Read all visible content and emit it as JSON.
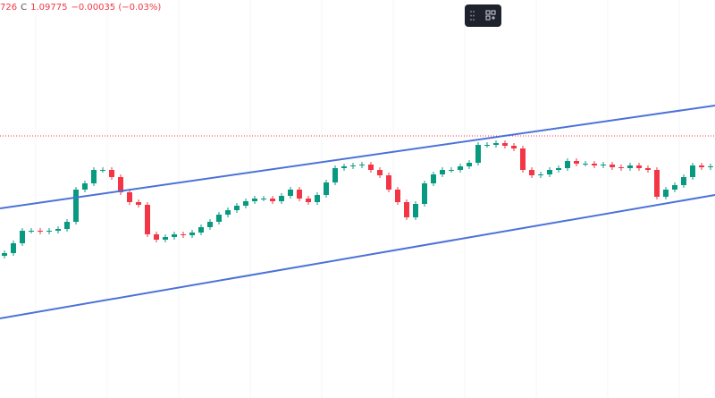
{
  "legend": {
    "prefix": "726",
    "close_label": "C",
    "close": "1.09775",
    "change": "−0.00035 (−0.03%)"
  },
  "chart_data": {
    "type": "candlestick",
    "ylim": [
      1.09516,
      1.09961
    ],
    "up_color": "#089981",
    "down_color": "#f23645",
    "line_color": "#4a72d9",
    "price_line": 1.09809,
    "open": [
      1.09675,
      1.09678,
      1.09689,
      1.09703,
      1.09703,
      1.09702,
      1.09703,
      1.09705,
      1.09713,
      1.09749,
      1.09756,
      1.09771,
      1.09771,
      1.09763,
      1.09746,
      1.09735,
      1.09732,
      1.09699,
      1.09693,
      1.09696,
      1.09699,
      1.09698,
      1.09701,
      1.09707,
      1.09713,
      1.09721,
      1.09726,
      1.09731,
      1.09736,
      1.09739,
      1.09739,
      1.09736,
      1.09742,
      1.09749,
      1.09739,
      1.09735,
      1.09743,
      1.09757,
      1.09773,
      1.09775,
      1.09776,
      1.09777,
      1.09771,
      1.09765,
      1.09749,
      1.09735,
      1.09718,
      1.09733,
      1.09756,
      1.09766,
      1.09771,
      1.09771,
      1.09775,
      1.09779,
      1.09799,
      1.09799,
      1.09801,
      1.09798,
      1.09795,
      1.09771,
      1.09765,
      1.09766,
      1.09771,
      1.09773,
      1.09781,
      1.09778,
      1.09778,
      1.09776,
      1.09777,
      1.09774,
      1.09773,
      1.09776,
      1.09773,
      1.09771,
      1.09741,
      1.09749,
      1.09754,
      1.09763,
      1.09776,
      1.09774
    ],
    "high": [
      1.09681,
      1.09692,
      1.09706,
      1.09706,
      1.09706,
      1.09706,
      1.09708,
      1.09716,
      1.09752,
      1.09759,
      1.09774,
      1.09774,
      1.09774,
      1.09766,
      1.09749,
      1.09738,
      1.09735,
      1.09702,
      1.09699,
      1.09702,
      1.09702,
      1.09704,
      1.0971,
      1.09716,
      1.09724,
      1.09729,
      1.09734,
      1.09739,
      1.09742,
      1.09742,
      1.09742,
      1.09745,
      1.09752,
      1.09752,
      1.09742,
      1.09746,
      1.0976,
      1.09776,
      1.09778,
      1.09779,
      1.0978,
      1.0978,
      1.09774,
      1.09768,
      1.09752,
      1.09738,
      1.09736,
      1.09759,
      1.09769,
      1.09774,
      1.09774,
      1.09778,
      1.09782,
      1.09802,
      1.09802,
      1.09804,
      1.09804,
      1.09801,
      1.09798,
      1.09774,
      1.09769,
      1.09774,
      1.09776,
      1.09784,
      1.09784,
      1.09781,
      1.09781,
      1.0978,
      1.0978,
      1.09777,
      1.09779,
      1.09779,
      1.09776,
      1.09774,
      1.09752,
      1.09757,
      1.09766,
      1.09779,
      1.09779,
      1.09778
    ],
    "low": [
      1.09672,
      1.09675,
      1.09686,
      1.097,
      1.09699,
      1.09699,
      1.097,
      1.09702,
      1.0971,
      1.09746,
      1.09753,
      1.09768,
      1.0976,
      1.09743,
      1.09732,
      1.09729,
      1.09696,
      1.0969,
      1.0969,
      1.09693,
      1.09695,
      1.09695,
      1.09698,
      1.09704,
      1.0971,
      1.09718,
      1.09723,
      1.09728,
      1.09733,
      1.09736,
      1.09733,
      1.09733,
      1.09739,
      1.09736,
      1.09732,
      1.09732,
      1.0974,
      1.09754,
      1.0977,
      1.09772,
      1.09773,
      1.09768,
      1.09762,
      1.09746,
      1.09732,
      1.09715,
      1.09715,
      1.0973,
      1.09753,
      1.09763,
      1.09768,
      1.09768,
      1.09772,
      1.09776,
      1.09796,
      1.09796,
      1.09795,
      1.09792,
      1.09768,
      1.09762,
      1.09762,
      1.09763,
      1.09768,
      1.0977,
      1.09775,
      1.09775,
      1.09773,
      1.09773,
      1.09771,
      1.0977,
      1.0977,
      1.0977,
      1.09768,
      1.09738,
      1.09738,
      1.09746,
      1.09751,
      1.0976,
      1.09771,
      1.09771
    ],
    "close": [
      1.09678,
      1.09689,
      1.09703,
      1.09703,
      1.09702,
      1.09703,
      1.09705,
      1.09713,
      1.09749,
      1.09756,
      1.09771,
      1.09771,
      1.09763,
      1.09746,
      1.09735,
      1.09732,
      1.09699,
      1.09693,
      1.09696,
      1.09699,
      1.09698,
      1.09701,
      1.09707,
      1.09713,
      1.09721,
      1.09726,
      1.09731,
      1.09736,
      1.09739,
      1.09739,
      1.09736,
      1.09742,
      1.09749,
      1.09739,
      1.09735,
      1.09743,
      1.09757,
      1.09773,
      1.09775,
      1.09776,
      1.09777,
      1.09771,
      1.09765,
      1.09749,
      1.09735,
      1.09718,
      1.09733,
      1.09756,
      1.09766,
      1.09771,
      1.09771,
      1.09775,
      1.09779,
      1.09799,
      1.09799,
      1.09801,
      1.09798,
      1.09795,
      1.09771,
      1.09765,
      1.09766,
      1.09771,
      1.09773,
      1.09781,
      1.09778,
      1.09778,
      1.09776,
      1.09777,
      1.09774,
      1.09773,
      1.09776,
      1.09773,
      1.09771,
      1.09741,
      1.09749,
      1.09754,
      1.09763,
      1.09776,
      1.09774,
      1.09775
    ],
    "trendlines": [
      {
        "x": [
          -0.5,
          79.5
        ],
        "y": [
          1.09728,
          1.09843
        ]
      },
      {
        "x": [
          -0.5,
          79.5
        ],
        "y": [
          1.09605,
          1.09743
        ]
      }
    ]
  }
}
